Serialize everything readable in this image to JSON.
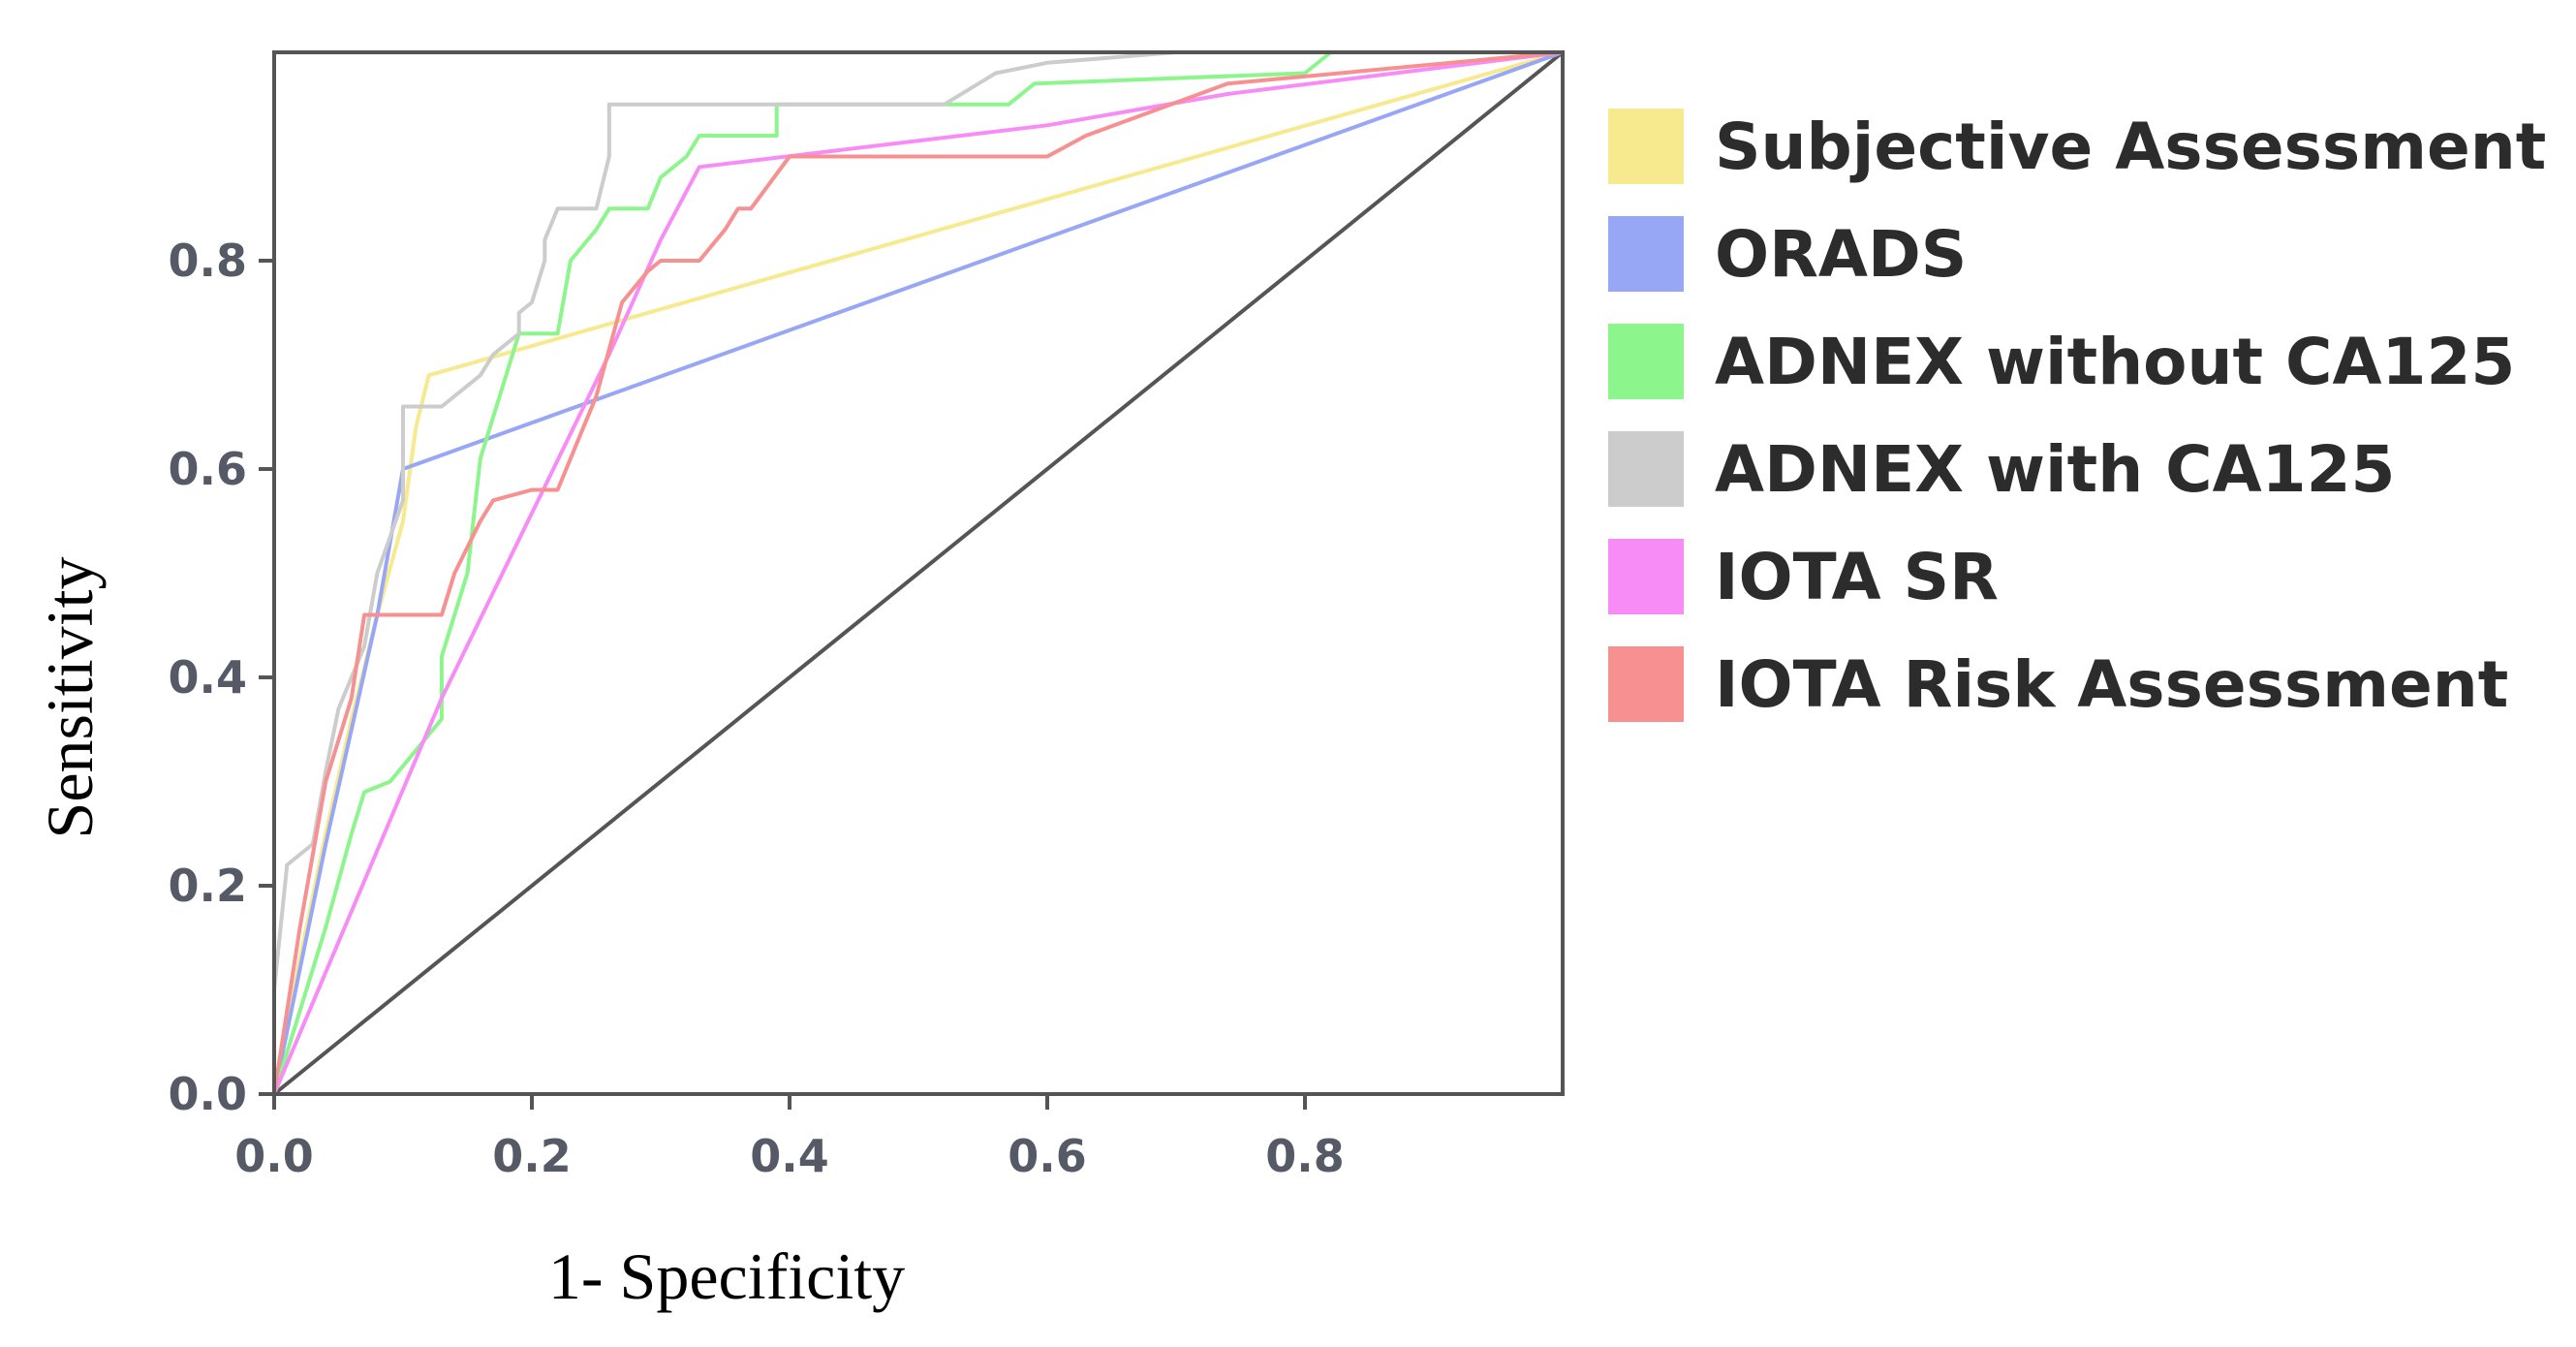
{
  "chart_data": {
    "type": "line",
    "title": "",
    "xlabel": "1- Specificity",
    "ylabel": "Sensitivity",
    "xlim": [
      0,
      1
    ],
    "ylim": [
      0,
      1
    ],
    "x_ticks": [
      0.0,
      0.2,
      0.4,
      0.6,
      0.8
    ],
    "x_tick_labels": [
      "0.0",
      "0.2",
      "0.4",
      "0.6",
      "0.8"
    ],
    "y_ticks": [
      0.0,
      0.2,
      0.4,
      0.6,
      0.8
    ],
    "y_tick_labels": [
      "0.0",
      "0.2",
      "0.4",
      "0.6",
      "0.8"
    ],
    "grid": false,
    "legend_position": "right",
    "reference_line": {
      "name": "Reference line",
      "color": "#555555",
      "points": [
        [
          0,
          0
        ],
        [
          1,
          1
        ]
      ]
    },
    "series": [
      {
        "name": "Subjective Assessment",
        "color": "#f7e98e",
        "points": [
          [
            0,
            0
          ],
          [
            0.02,
            0.13
          ],
          [
            0.04,
            0.25
          ],
          [
            0.06,
            0.36
          ],
          [
            0.08,
            0.46
          ],
          [
            0.1,
            0.55
          ],
          [
            0.11,
            0.64
          ],
          [
            0.12,
            0.69
          ],
          [
            1,
            1
          ]
        ]
      },
      {
        "name": "ORADS",
        "color": "#98a7f5",
        "points": [
          [
            0,
            0
          ],
          [
            0.02,
            0.12
          ],
          [
            0.04,
            0.24
          ],
          [
            0.06,
            0.35
          ],
          [
            0.08,
            0.46
          ],
          [
            0.1,
            0.6
          ],
          [
            1,
            1
          ]
        ]
      },
      {
        "name": "ADNEX without CA125",
        "color": "#8cf58c",
        "points": [
          [
            0,
            0
          ],
          [
            0.02,
            0.08
          ],
          [
            0.04,
            0.16
          ],
          [
            0.06,
            0.25
          ],
          [
            0.07,
            0.29
          ],
          [
            0.09,
            0.3
          ],
          [
            0.11,
            0.33
          ],
          [
            0.13,
            0.36
          ],
          [
            0.13,
            0.42
          ],
          [
            0.15,
            0.5
          ],
          [
            0.16,
            0.61
          ],
          [
            0.17,
            0.65
          ],
          [
            0.18,
            0.69
          ],
          [
            0.19,
            0.73
          ],
          [
            0.22,
            0.73
          ],
          [
            0.23,
            0.8
          ],
          [
            0.25,
            0.83
          ],
          [
            0.26,
            0.85
          ],
          [
            0.29,
            0.85
          ],
          [
            0.3,
            0.88
          ],
          [
            0.32,
            0.9
          ],
          [
            0.33,
            0.92
          ],
          [
            0.39,
            0.92
          ],
          [
            0.39,
            0.95
          ],
          [
            0.57,
            0.95
          ],
          [
            0.59,
            0.97
          ],
          [
            0.8,
            0.98
          ],
          [
            0.82,
            1
          ],
          [
            1,
            1
          ]
        ]
      },
      {
        "name": "ADNEX with CA125",
        "color": "#cccccc",
        "points": [
          [
            0,
            0
          ],
          [
            0,
            0.1
          ],
          [
            0.01,
            0.22
          ],
          [
            0.03,
            0.24
          ],
          [
            0.04,
            0.31
          ],
          [
            0.05,
            0.37
          ],
          [
            0.07,
            0.43
          ],
          [
            0.08,
            0.5
          ],
          [
            0.1,
            0.57
          ],
          [
            0.1,
            0.66
          ],
          [
            0.13,
            0.66
          ],
          [
            0.16,
            0.69
          ],
          [
            0.17,
            0.71
          ],
          [
            0.19,
            0.73
          ],
          [
            0.19,
            0.75
          ],
          [
            0.2,
            0.76
          ],
          [
            0.21,
            0.8
          ],
          [
            0.21,
            0.82
          ],
          [
            0.22,
            0.85
          ],
          [
            0.25,
            0.85
          ],
          [
            0.26,
            0.9
          ],
          [
            0.26,
            0.95
          ],
          [
            0.52,
            0.95
          ],
          [
            0.56,
            0.98
          ],
          [
            0.6,
            0.99
          ],
          [
            0.7,
            1
          ],
          [
            1,
            1
          ]
        ]
      },
      {
        "name": "IOTA SR",
        "color": "#f78cf7",
        "points": [
          [
            0,
            0
          ],
          [
            0.13,
            0.38
          ],
          [
            0.26,
            0.71
          ],
          [
            0.3,
            0.82
          ],
          [
            0.33,
            0.89
          ],
          [
            0.6,
            0.93
          ],
          [
            0.74,
            0.96
          ],
          [
            1,
            1
          ]
        ]
      },
      {
        "name": "IOTA Risk Assessment",
        "color": "#f79090",
        "points": [
          [
            0,
            0
          ],
          [
            0.02,
            0.16
          ],
          [
            0.04,
            0.3
          ],
          [
            0.06,
            0.38
          ],
          [
            0.07,
            0.46
          ],
          [
            0.13,
            0.46
          ],
          [
            0.14,
            0.5
          ],
          [
            0.16,
            0.55
          ],
          [
            0.17,
            0.57
          ],
          [
            0.2,
            0.58
          ],
          [
            0.22,
            0.58
          ],
          [
            0.25,
            0.67
          ],
          [
            0.27,
            0.76
          ],
          [
            0.29,
            0.79
          ],
          [
            0.3,
            0.8
          ],
          [
            0.33,
            0.8
          ],
          [
            0.35,
            0.83
          ],
          [
            0.36,
            0.85
          ],
          [
            0.37,
            0.85
          ],
          [
            0.4,
            0.9
          ],
          [
            0.6,
            0.9
          ],
          [
            0.63,
            0.92
          ],
          [
            0.74,
            0.97
          ],
          [
            1,
            1
          ]
        ]
      }
    ]
  }
}
